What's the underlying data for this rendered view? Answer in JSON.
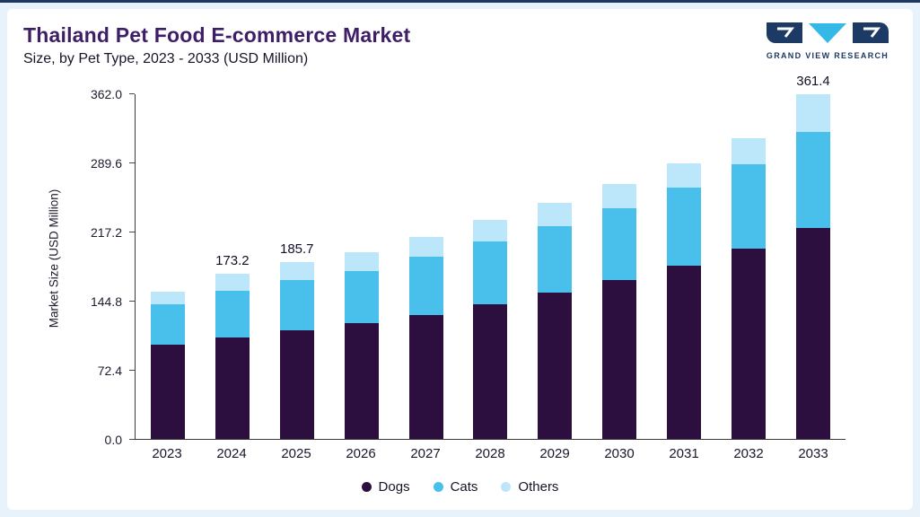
{
  "page": {
    "background_color": "#e7f2fa",
    "top_bar_color": "#1c3a63",
    "card_color": "#ffffff"
  },
  "header": {
    "title": "Thailand Pet Food E-commerce Market",
    "subtitle": "Size, by Pet Type, 2023 - 2033 (USD Million)",
    "title_color": "#3f1e68"
  },
  "logo": {
    "text": "GRAND VIEW RESEARCH",
    "navy": "#1c3a63",
    "cyan": "#33b8e8"
  },
  "chart_data": {
    "type": "bar",
    "stacked": true,
    "title": "Thailand Pet Food E-commerce Market Size, by Pet Type, 2023 - 2033 (USD Million)",
    "xlabel": "",
    "ylabel": "Market Size (USD Million)",
    "ylim": [
      0,
      362.0
    ],
    "yticks": [
      "0.0",
      "72.4",
      "144.8",
      "217.2",
      "289.6",
      "362.0"
    ],
    "grid": false,
    "legend_position": "bottom",
    "categories": [
      "2023",
      "2024",
      "2025",
      "2026",
      "2027",
      "2028",
      "2029",
      "2030",
      "2031",
      "2032",
      "2033"
    ],
    "series": [
      {
        "name": "Dogs",
        "color": "#2c0f3f",
        "values": [
          99.0,
          106.0,
          114.0,
          121.0,
          130.0,
          141.0,
          153.0,
          166.0,
          181.0,
          199.0,
          221.0
        ]
      },
      {
        "name": "Cats",
        "color": "#49bfec",
        "values": [
          42.0,
          49.0,
          52.0,
          55.0,
          61.0,
          66.0,
          70.0,
          76.0,
          82.0,
          89.0,
          101.0
        ]
      },
      {
        "name": "Others",
        "color": "#bce6f9",
        "values": [
          13.0,
          18.2,
          19.7,
          20.0,
          21.0,
          22.0,
          24.0,
          25.0,
          26.0,
          27.0,
          39.4
        ]
      }
    ],
    "totals": [
      154.0,
      173.2,
      185.7,
      196.0,
      212.0,
      229.0,
      247.0,
      267.0,
      289.0,
      315.0,
      361.4
    ],
    "value_labels": {
      "2024": "173.2",
      "2025": "185.7",
      "2033": "361.4"
    },
    "legend": [
      "Dogs",
      "Cats",
      "Others"
    ]
  }
}
